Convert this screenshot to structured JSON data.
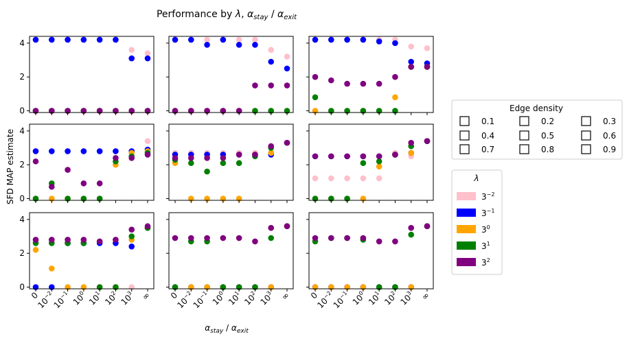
{
  "figure": {
    "title_prefix": "Performance by ",
    "title_lambda": "λ",
    "title_sep": ", ",
    "alpha_sym": "α",
    "stay_sub": "stay",
    "slash": " / ",
    "exit_sub": "exit",
    "ylabel": "SFD MAP estimate",
    "xtick_base": "10",
    "xtick_labels": [
      "0",
      "10^-2",
      "10^-1",
      "10^0",
      "10^1",
      "10^2",
      "10^3",
      "∞"
    ],
    "ytick_labels": [
      "0",
      "2",
      "4"
    ]
  },
  "legends": {
    "edge_density": {
      "title": "Edge density",
      "entries": [
        "0.1",
        "0.2",
        "0.3",
        "0.4",
        "0.5",
        "0.6",
        "0.7",
        "0.8",
        "0.9"
      ]
    },
    "lambda": {
      "title": "λ",
      "entries": [
        {
          "base": "3",
          "exp": "−2",
          "color": "#ffc0cb"
        },
        {
          "base": "3",
          "exp": "−1",
          "color": "#0000ff"
        },
        {
          "base": "3",
          "exp": "0",
          "color": "#ffa500"
        },
        {
          "base": "3",
          "exp": "1",
          "color": "#008000"
        },
        {
          "base": "3",
          "exp": "2",
          "color": "#800080"
        }
      ]
    }
  },
  "chart_data": {
    "type": "scatter",
    "title": "Performance by λ, α_stay / α_exit",
    "xlabel": "α_stay / α_exit",
    "ylabel": "SFD MAP estimate",
    "x_categories": [
      "0",
      "1e-2",
      "1e-1",
      "1e0",
      "1e1",
      "1e2",
      "1e3",
      "inf"
    ],
    "ylim": [
      -0.1,
      4.4
    ],
    "grid": false,
    "legend_placement": "right",
    "series_colors": {
      "3^-2": "#ffc0cb",
      "3^-1": "#0000ff",
      "3^0": "#ffa500",
      "3^1": "#008000",
      "3^2": "#800080"
    },
    "panels": [
      {
        "row": 0,
        "col": 0,
        "series": [
          {
            "name": "3^-2",
            "values": [
              4.2,
              4.2,
              4.2,
              4.2,
              4.2,
              4.2,
              3.6,
              3.4
            ]
          },
          {
            "name": "3^-1",
            "values": [
              4.2,
              4.2,
              4.2,
              4.2,
              4.2,
              4.2,
              3.1,
              3.1
            ]
          },
          {
            "name": "3^0",
            "values": [
              0,
              0,
              0,
              0,
              0,
              0,
              0,
              0
            ]
          },
          {
            "name": "3^1",
            "values": [
              0,
              0,
              0,
              0,
              0,
              0,
              0,
              0
            ]
          },
          {
            "name": "3^2",
            "values": [
              0,
              0,
              0,
              0,
              0,
              0,
              0,
              0
            ]
          }
        ]
      },
      {
        "row": 0,
        "col": 1,
        "series": [
          {
            "name": "3^-2",
            "values": [
              4.2,
              4.2,
              4.2,
              4.2,
              4.2,
              4.2,
              3.6,
              3.2
            ]
          },
          {
            "name": "3^-1",
            "values": [
              4.2,
              4.2,
              3.9,
              4.2,
              3.9,
              3.9,
              2.9,
              2.5
            ]
          },
          {
            "name": "3^0",
            "values": [
              0,
              0,
              0,
              0,
              0,
              0,
              0,
              0
            ]
          },
          {
            "name": "3^1",
            "values": [
              0,
              0,
              0,
              0,
              0,
              0,
              0,
              0
            ]
          },
          {
            "name": "3^2",
            "values": [
              0,
              0,
              0,
              0,
              0,
              1.5,
              1.5,
              1.5
            ]
          }
        ]
      },
      {
        "row": 0,
        "col": 2,
        "series": [
          {
            "name": "3^-2",
            "values": [
              4.2,
              4.2,
              4.2,
              4.2,
              4.2,
              4.2,
              3.8,
              3.7
            ]
          },
          {
            "name": "3^-1",
            "values": [
              4.2,
              4.2,
              4.2,
              4.2,
              4.1,
              4.0,
              2.9,
              2.8
            ]
          },
          {
            "name": "3^0",
            "values": [
              0,
              0,
              0,
              0,
              0,
              0.8,
              2.6,
              2.6
            ]
          },
          {
            "name": "3^1",
            "values": [
              0.8,
              0,
              0,
              0,
              0,
              0,
              2.6,
              2.6
            ]
          },
          {
            "name": "3^2",
            "values": [
              2.0,
              1.8,
              1.6,
              1.6,
              1.6,
              2.0,
              2.6,
              2.6
            ]
          }
        ]
      },
      {
        "row": 1,
        "col": 0,
        "series": [
          {
            "name": "3^-2",
            "values": [
              2.8,
              2.8,
              2.8,
              2.8,
              2.8,
              2.8,
              2.8,
              3.4
            ]
          },
          {
            "name": "3^-1",
            "values": [
              2.8,
              2.8,
              2.8,
              2.8,
              2.8,
              2.8,
              2.8,
              2.9
            ]
          },
          {
            "name": "3^0",
            "values": [
              0,
              0,
              0,
              0,
              0,
              2.0,
              2.7,
              2.8
            ]
          },
          {
            "name": "3^1",
            "values": [
              0,
              0.9,
              0,
              0,
              0,
              2.2,
              2.5,
              2.7
            ]
          },
          {
            "name": "3^2",
            "values": [
              2.2,
              0.7,
              1.7,
              0.9,
              0.9,
              2.4,
              2.4,
              2.6
            ]
          }
        ]
      },
      {
        "row": 1,
        "col": 1,
        "series": [
          {
            "name": "3^-2",
            "values": [
              2.7,
              2.7,
              2.7,
              2.7,
              2.7,
              2.7,
              2.7,
              3.3
            ]
          },
          {
            "name": "3^-1",
            "values": [
              2.6,
              2.6,
              2.6,
              2.6,
              2.6,
              2.6,
              2.6,
              3.3
            ]
          },
          {
            "name": "3^0",
            "values": [
              2.1,
              0,
              0,
              0,
              0,
              2.6,
              2.7,
              3.3
            ]
          },
          {
            "name": "3^1",
            "values": [
              2.3,
              2.1,
              1.6,
              2.1,
              2.1,
              2.5,
              3.0,
              3.3
            ]
          },
          {
            "name": "3^2",
            "values": [
              2.4,
              2.4,
              2.4,
              2.4,
              2.6,
              2.6,
              3.1,
              3.3
            ]
          }
        ]
      },
      {
        "row": 1,
        "col": 2,
        "series": [
          {
            "name": "3^-2",
            "values": [
              1.2,
              1.2,
              1.2,
              1.2,
              1.2,
              2.7,
              2.5,
              3.4
            ]
          },
          {
            "name": "3^-1",
            "values": [
              2.5,
              2.5,
              2.5,
              2.5,
              2.5,
              2.6,
              2.7,
              3.4
            ]
          },
          {
            "name": "3^0",
            "values": [
              0,
              0,
              0,
              0,
              1.9,
              2.6,
              2.7,
              3.4
            ]
          },
          {
            "name": "3^1",
            "values": [
              0,
              0,
              0,
              2.1,
              2.2,
              2.6,
              3.1,
              3.4
            ]
          },
          {
            "name": "3^2",
            "values": [
              2.5,
              2.5,
              2.5,
              2.5,
              2.5,
              2.6,
              3.3,
              3.4
            ]
          }
        ]
      },
      {
        "row": 2,
        "col": 0,
        "series": [
          {
            "name": "3^-2",
            "values": [
              2.7,
              2.7,
              2.7,
              2.7,
              2.7,
              2.7,
              0,
              3.5
            ]
          },
          {
            "name": "3^-1",
            "values": [
              0,
              0,
              2.6,
              2.6,
              2.6,
              2.6,
              2.4,
              3.5
            ]
          },
          {
            "name": "3^0",
            "values": [
              2.2,
              1.1,
              0,
              0,
              0,
              0,
              2.8,
              3.5
            ]
          },
          {
            "name": "3^1",
            "values": [
              2.6,
              2.6,
              2.6,
              2.6,
              0,
              0,
              3.0,
              3.5
            ]
          },
          {
            "name": "3^2",
            "values": [
              2.8,
              2.8,
              2.8,
              2.8,
              2.7,
              2.8,
              3.4,
              3.6
            ]
          }
        ]
      },
      {
        "row": 2,
        "col": 1,
        "series": [
          {
            "name": "3^-2",
            "values": [
              2.9,
              2.9,
              2.9,
              2.9,
              2.9,
              2.7,
              3.5,
              3.6
            ]
          },
          {
            "name": "3^-1",
            "values": [
              0,
              0,
              0,
              0,
              0,
              0,
              0,
              3.6
            ]
          },
          {
            "name": "3^0",
            "values": [
              0,
              0,
              0,
              0,
              0,
              0,
              0,
              3.6
            ]
          },
          {
            "name": "3^1",
            "values": [
              0,
              2.7,
              2.7,
              0,
              0,
              0,
              2.9,
              3.6
            ]
          },
          {
            "name": "3^2",
            "values": [
              2.9,
              2.9,
              2.9,
              2.9,
              2.9,
              2.7,
              3.5,
              3.6
            ]
          }
        ]
      },
      {
        "row": 2,
        "col": 2,
        "series": [
          {
            "name": "3^-2",
            "values": [
              2.9,
              2.9,
              2.9,
              2.9,
              2.7,
              2.7,
              3.5,
              3.6
            ]
          },
          {
            "name": "3^-1",
            "values": [
              0,
              0,
              0,
              0,
              0,
              0,
              0,
              3.6
            ]
          },
          {
            "name": "3^0",
            "values": [
              0,
              0,
              0,
              0,
              0,
              0,
              0,
              3.6
            ]
          },
          {
            "name": "3^1",
            "values": [
              2.7,
              2.9,
              2.9,
              2.8,
              0,
              0,
              3.1,
              3.6
            ]
          },
          {
            "name": "3^2",
            "values": [
              2.9,
              2.9,
              2.9,
              2.9,
              2.7,
              2.7,
              3.5,
              3.6
            ]
          }
        ]
      }
    ]
  }
}
